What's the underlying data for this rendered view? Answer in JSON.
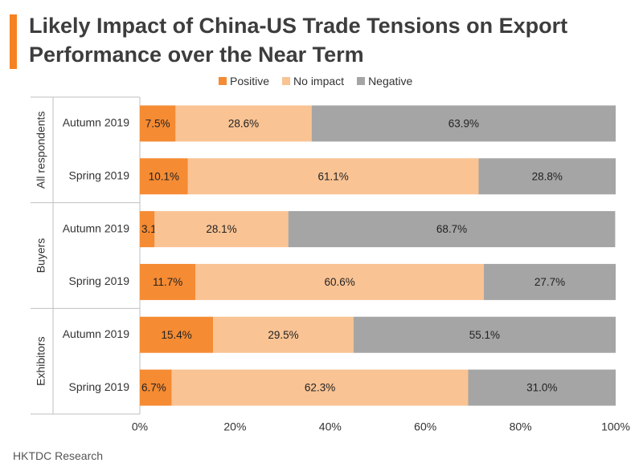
{
  "title_lines": [
    "Likely Impact of China-US Trade Tensions on Export",
    "Performance over the Near Term"
  ],
  "source": "HKTDC Research",
  "colors": {
    "accent": "#f58220",
    "positive": "#f58b33",
    "no_impact": "#f9c394",
    "negative": "#a5a5a5"
  },
  "chart_data": {
    "type": "bar",
    "orientation": "horizontal",
    "stacked": true,
    "title": "Likely Impact of China-US Trade Tensions on Export Performance over the Near Term",
    "legend_position": "top",
    "xlim": [
      0,
      100
    ],
    "x_ticks": [
      "0%",
      "20%",
      "40%",
      "60%",
      "80%",
      "100%"
    ],
    "groups": [
      {
        "name": "All respondents",
        "categories": [
          "Autumn 2019",
          "Spring 2019"
        ]
      },
      {
        "name": "Buyers",
        "categories": [
          "Autumn 2019",
          "Spring 2019"
        ]
      },
      {
        "name": "Exhibitors",
        "categories": [
          "Autumn 2019",
          "Spring 2019"
        ]
      }
    ],
    "series": [
      {
        "name": "Positive",
        "values": [
          7.5,
          10.1,
          3.1,
          11.7,
          15.4,
          6.7
        ],
        "labels": [
          "7.5%",
          "10.1%",
          "3.1%",
          "11.7%",
          "15.4%",
          "6.7%"
        ]
      },
      {
        "name": "No impact",
        "values": [
          28.6,
          61.1,
          28.1,
          60.6,
          29.5,
          62.3
        ],
        "labels": [
          "28.6%",
          "61.1%",
          "28.1%",
          "60.6%",
          "29.5%",
          "62.3%"
        ]
      },
      {
        "name": "Negative",
        "values": [
          63.9,
          28.8,
          68.7,
          27.7,
          55.1,
          31.0
        ],
        "labels": [
          "63.9%",
          "28.8%",
          "68.7%",
          "27.7%",
          "55.1%",
          "31.0%"
        ]
      }
    ]
  }
}
